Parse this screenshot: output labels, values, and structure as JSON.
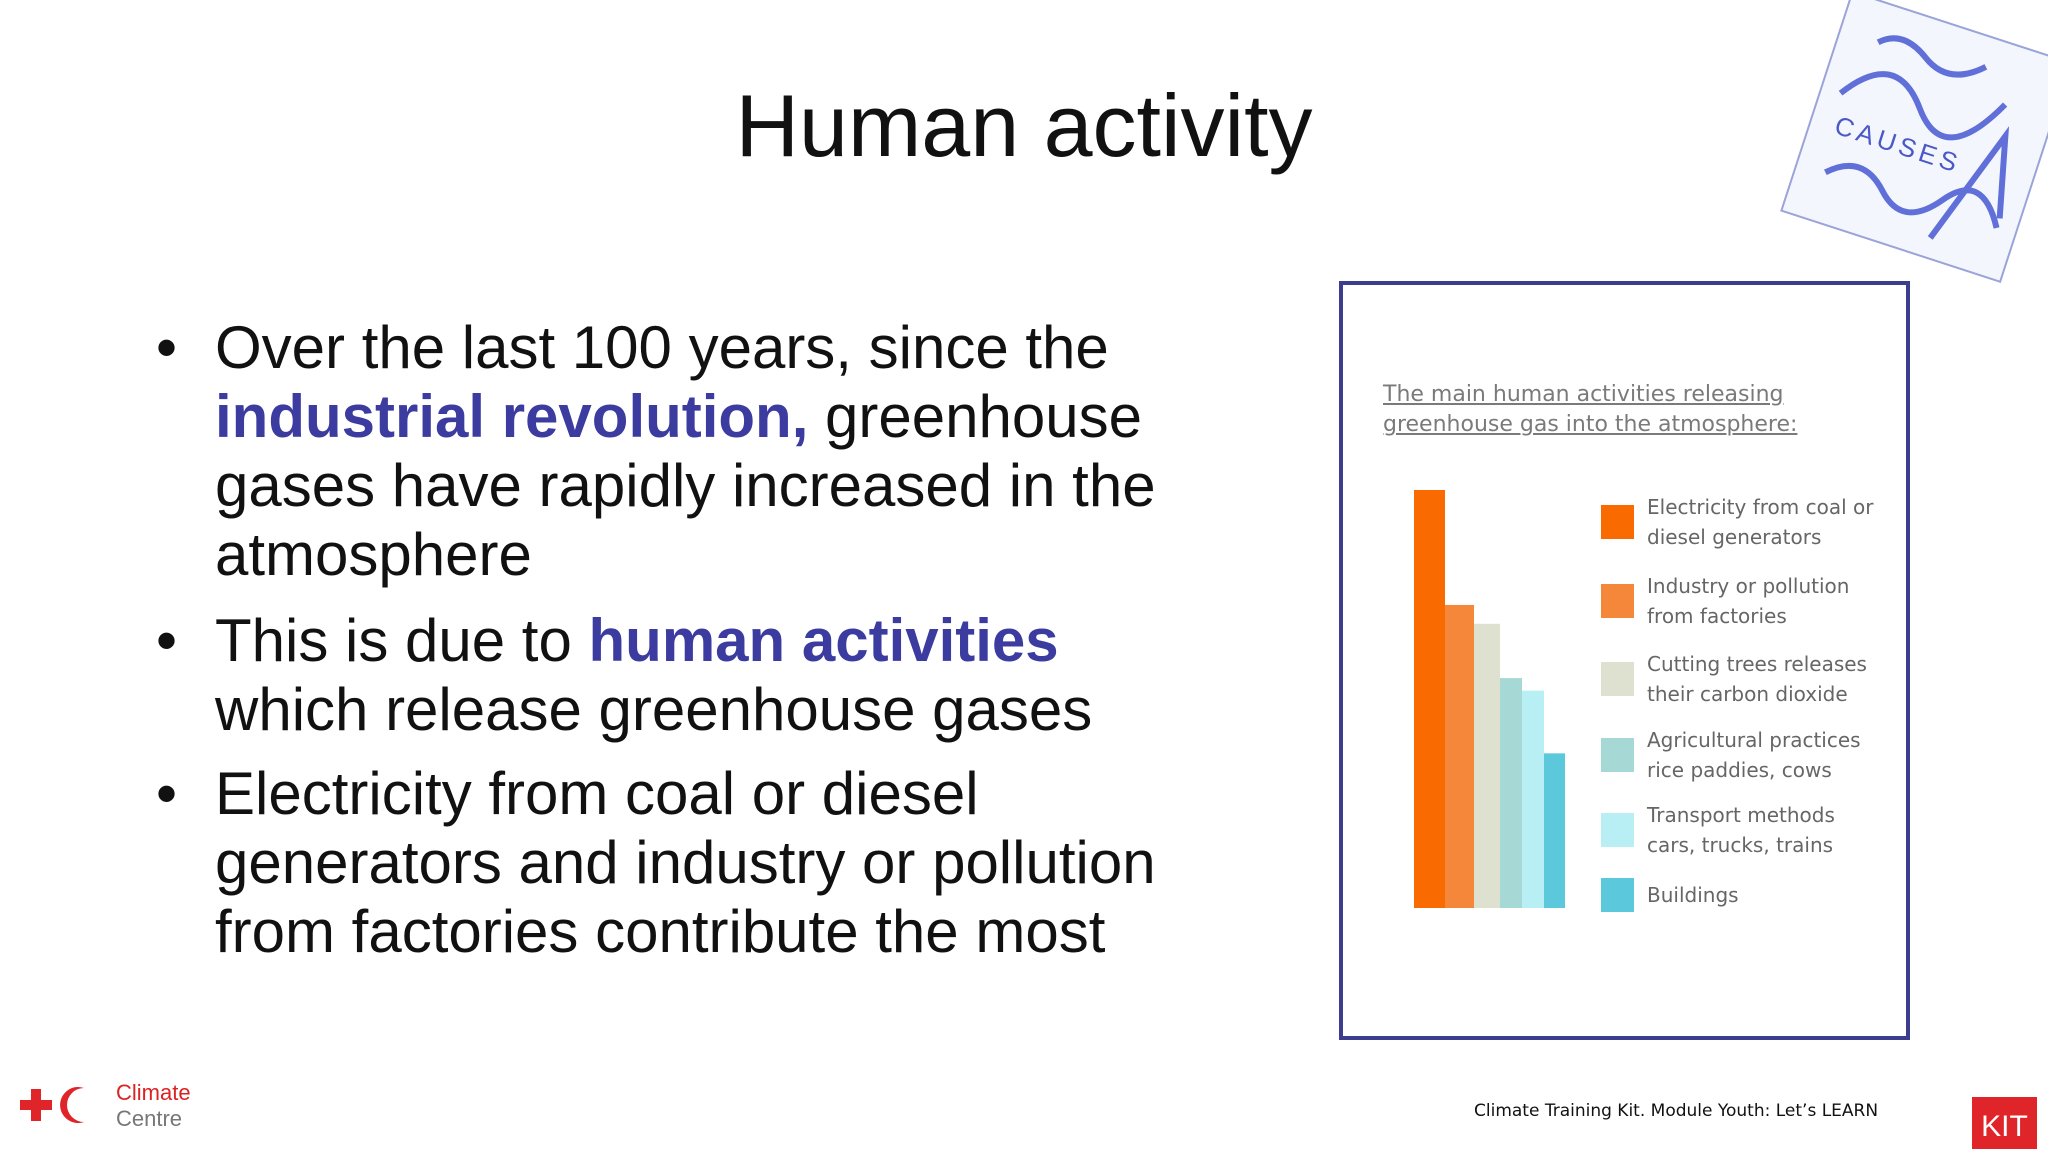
{
  "slide": {
    "title": "Human activity",
    "bullets": [
      {
        "lines": [
          [
            {
              "text": "Over the last 100 years, since the"
            }
          ],
          [
            {
              "text": "industrial revolution,",
              "color": "#3b3ba0"
            },
            {
              "text": " greenhouse"
            }
          ],
          [
            {
              "text": "gases have rapidly increased in the"
            }
          ],
          [
            {
              "text": "atmosphere"
            }
          ]
        ]
      },
      {
        "lines": [
          [
            {
              "text": "This is due to "
            },
            {
              "text": "human activities",
              "color": "#3b3ba0"
            }
          ],
          [
            {
              "text": "which release greenhouse gases"
            }
          ]
        ]
      },
      {
        "lines": [
          [
            {
              "text": "Electricity from coal or diesel"
            }
          ],
          [
            {
              "text": "generators and industry or pollution"
            }
          ],
          [
            {
              "text": "from factories contribute the most"
            }
          ]
        ]
      }
    ]
  },
  "chart_data": {
    "type": "bar",
    "title": "The main human activities releasing greenhouse gas into the atmosphere:",
    "ylim": [
      0,
      100
    ],
    "series": [
      {
        "name": "Electricity from coal or diesel generators",
        "color": "#f96a00",
        "values": [
          100
        ]
      },
      {
        "name": "Industry or pollution from factories",
        "color": "#f5873a",
        "values": [
          72.5
        ]
      },
      {
        "name": "Cutting trees releases their carbon dioxide",
        "color": "#dfe1d0",
        "values": [
          68
        ]
      },
      {
        "name": "Agricultural practices rice paddies, cows",
        "color": "#a6d9d6",
        "values": [
          55
        ]
      },
      {
        "name": "Transport methods cars, trucks, trains",
        "color": "#b8eff4",
        "values": [
          52
        ]
      },
      {
        "name": "Buildings",
        "color": "#5bc8dc",
        "values": [
          37
        ]
      }
    ]
  },
  "sketch": {
    "label": "CAUSES"
  },
  "footer": {
    "text": "Climate Training Kit. Module Youth: Let’s LEARN",
    "logo_line1": "Climate",
    "logo_line2": "Centre",
    "kit": "KIT"
  }
}
